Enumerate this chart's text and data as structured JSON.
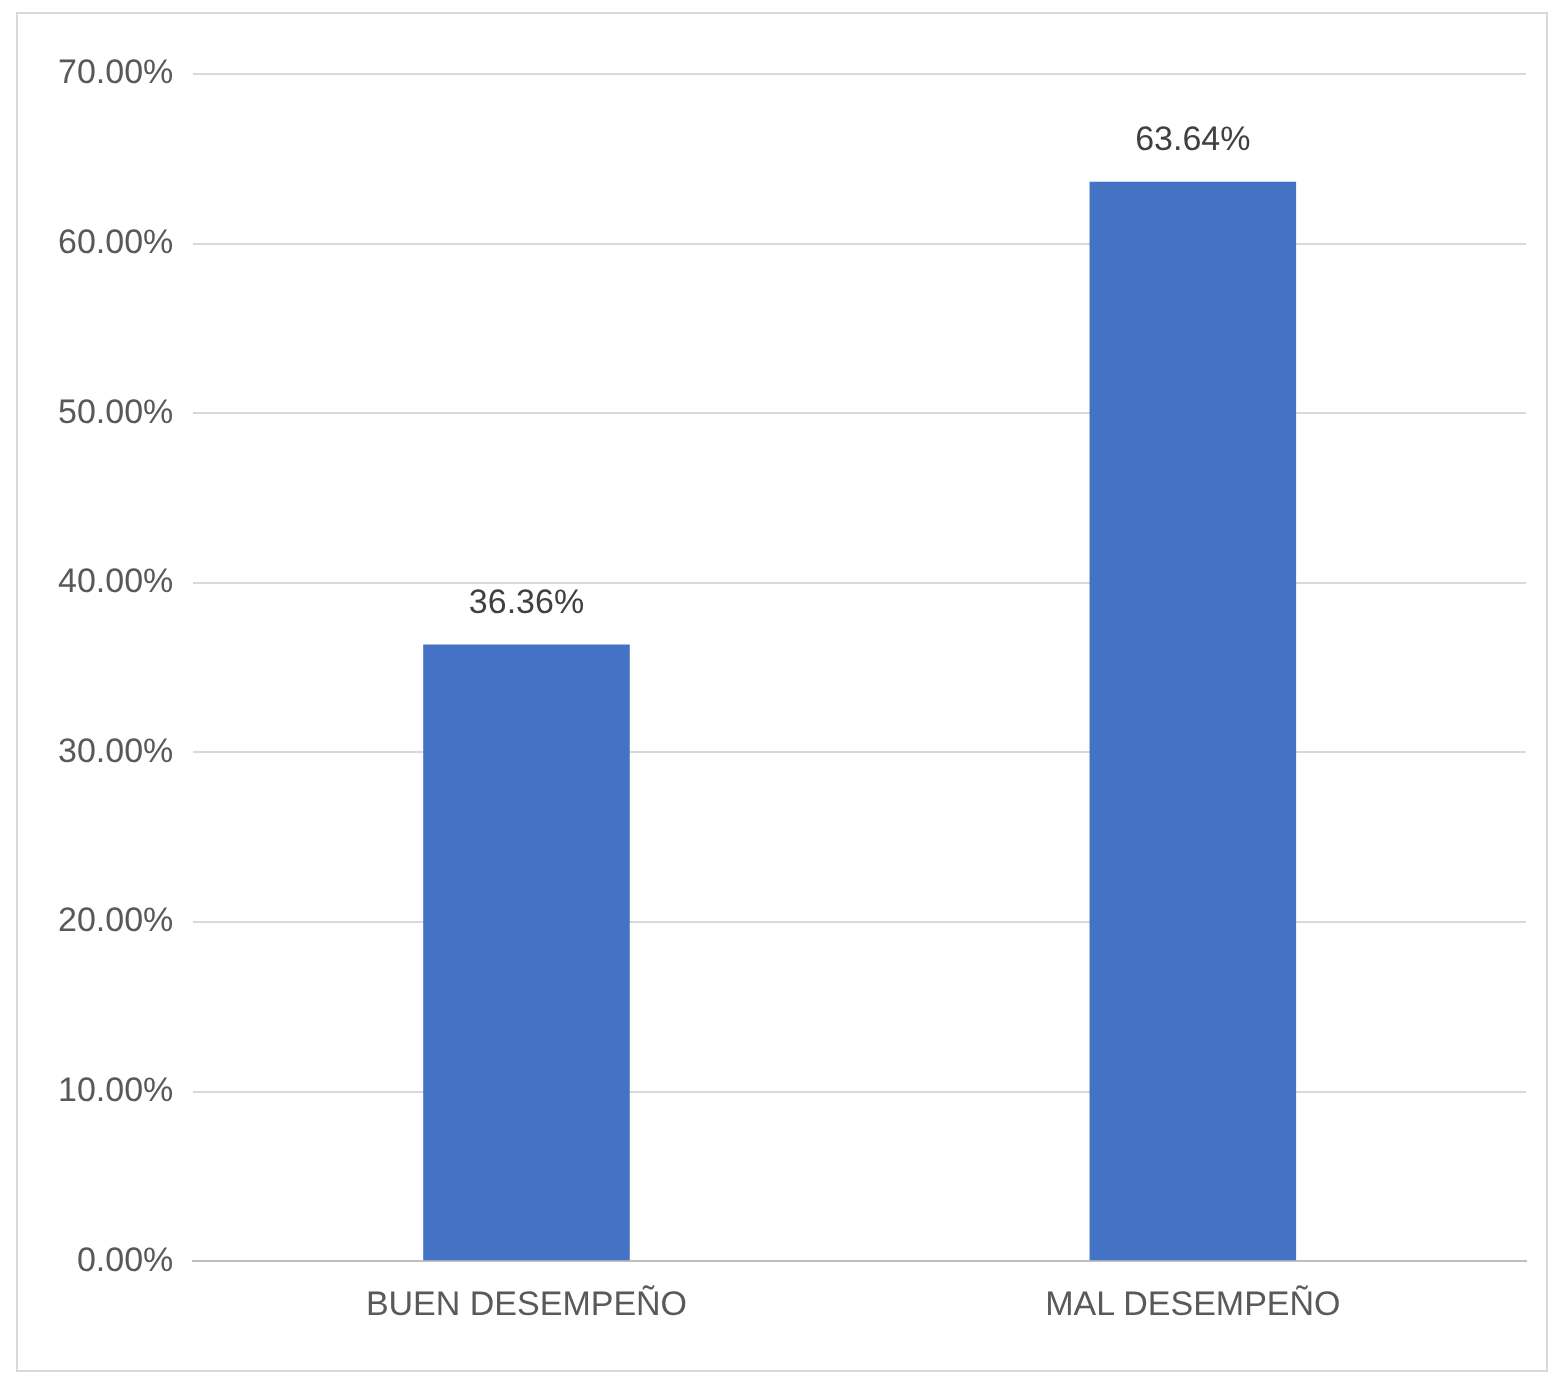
{
  "chart_data": {
    "type": "bar",
    "categories": [
      "BUEN DESEMPEÑO",
      "MAL DESEMPEÑO"
    ],
    "values": [
      36.36,
      63.64
    ],
    "color": "#4472c4",
    "value_labels": [
      "36.36%",
      "63.64%"
    ],
    "ylim": [
      0,
      70
    ],
    "yticks": [
      {
        "value": 0,
        "label": "0.00%"
      },
      {
        "value": 10,
        "label": "10.00%"
      },
      {
        "value": 20,
        "label": "20.00%"
      },
      {
        "value": 30,
        "label": "30.00%"
      },
      {
        "value": 40,
        "label": "40.00%"
      },
      {
        "value": 50,
        "label": "50.00%"
      },
      {
        "value": 60,
        "label": "60.00%"
      },
      {
        "value": 70,
        "label": "70.00%"
      }
    ],
    "grid": "y",
    "legend": false
  }
}
